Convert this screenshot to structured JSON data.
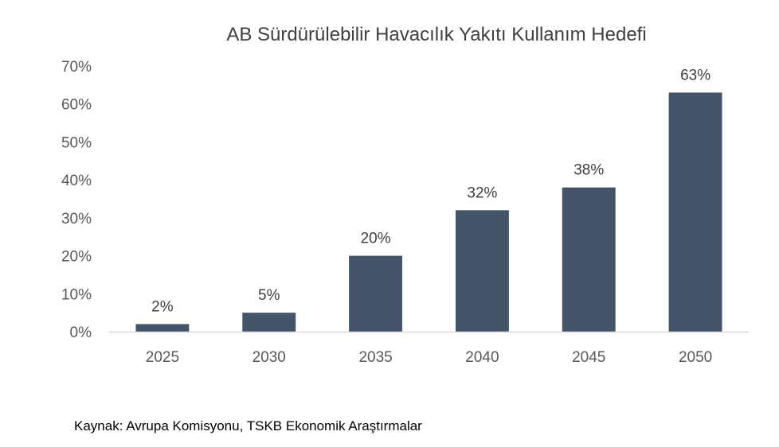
{
  "chart_data": {
    "type": "bar",
    "title": "AB Sürdürülebilir Havacılık Yakıtı Kullanım Hedefi",
    "categories": [
      "2025",
      "2030",
      "2035",
      "2040",
      "2045",
      "2050"
    ],
    "values": [
      2,
      5,
      20,
      32,
      38,
      63
    ],
    "data_labels": [
      "2%",
      "5%",
      "20%",
      "32%",
      "38%",
      "63%"
    ],
    "ylim": [
      0,
      70
    ],
    "yticks": [
      0,
      10,
      20,
      30,
      40,
      50,
      60,
      70
    ],
    "ytick_labels": [
      "0%",
      "10%",
      "20%",
      "30%",
      "40%",
      "50%",
      "60%",
      "70%"
    ],
    "xlabel": "",
    "ylabel": "",
    "grid": false,
    "legend": "none",
    "bar_color": "#445469",
    "axis_color": "#d9d9d9"
  },
  "source_note": "Kaynak: Avrupa Komisyonu, TSKB Ekonomik Araştırmalar"
}
